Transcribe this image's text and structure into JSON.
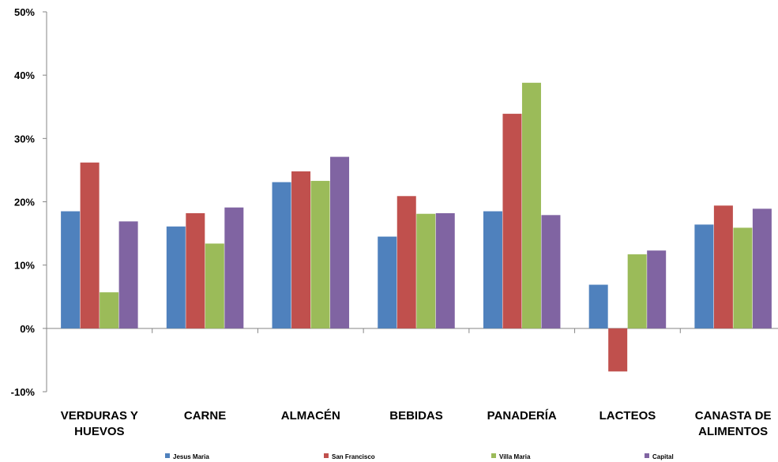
{
  "chart_data": {
    "type": "bar",
    "categories": [
      [
        "VERDURAS Y",
        "HUEVOS"
      ],
      [
        "CARNE"
      ],
      [
        "ALMACÉN"
      ],
      [
        "BEBIDAS"
      ],
      [
        "PANADERÍA"
      ],
      [
        "LACTEOS"
      ],
      [
        "CANASTA DE",
        "ALIMENTOS"
      ]
    ],
    "series": [
      {
        "name": "Jesus Maria",
        "color": "#4F81BD",
        "values": [
          18.5,
          16.1,
          23.1,
          14.5,
          18.5,
          6.9,
          16.4
        ]
      },
      {
        "name": "San Francisco",
        "color": "#C0504D",
        "values": [
          26.2,
          18.2,
          24.8,
          20.9,
          33.9,
          -6.8,
          19.4
        ]
      },
      {
        "name": "Villa Maria",
        "color": "#9BBB59",
        "values": [
          5.7,
          13.4,
          23.3,
          18.1,
          38.8,
          11.7,
          15.9
        ]
      },
      {
        "name": "Capital",
        "color": "#8064A2",
        "values": [
          16.9,
          19.1,
          27.1,
          18.2,
          17.9,
          12.3,
          18.9
        ]
      }
    ],
    "ylim": [
      -10,
      50
    ],
    "yticks": [
      "50%",
      "40%",
      "30%",
      "20%",
      "10%",
      "0%",
      "-10%"
    ],
    "ytick_values": [
      50,
      40,
      30,
      20,
      10,
      0,
      -10
    ],
    "grid": false,
    "legend_position": "bottom",
    "title": "",
    "xlabel": "",
    "ylabel": ""
  }
}
